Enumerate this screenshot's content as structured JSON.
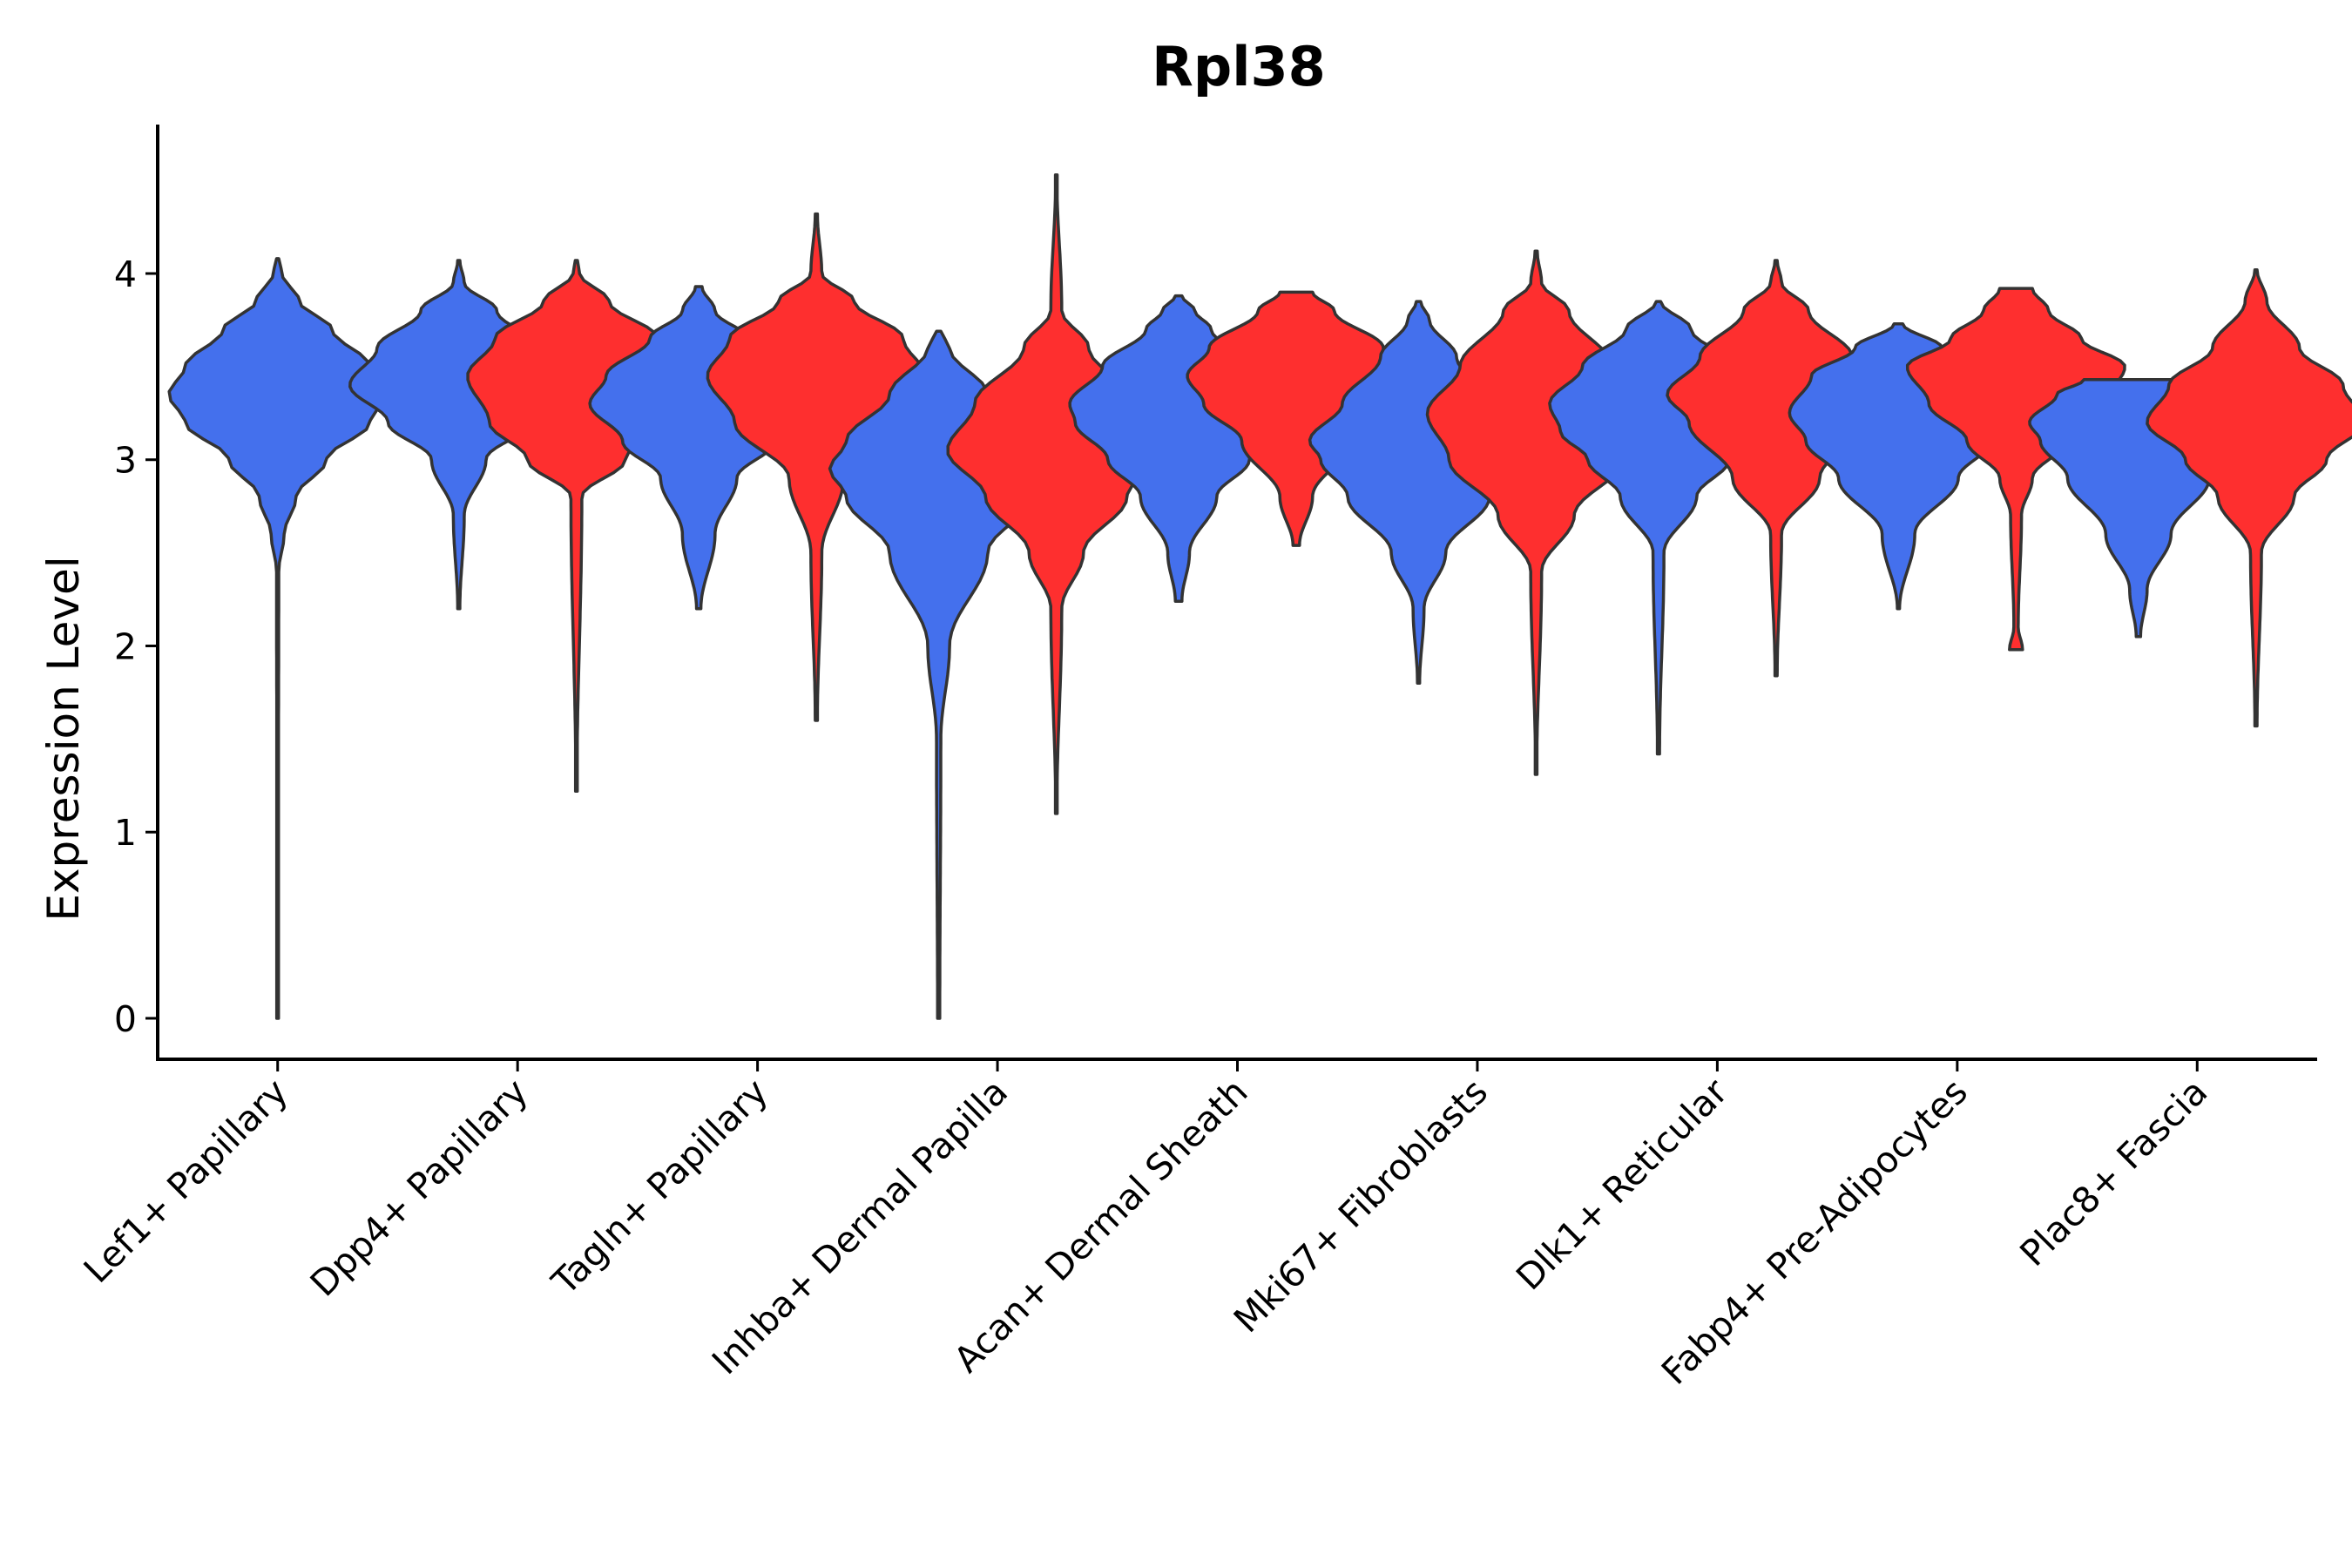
{
  "chart_data": {
    "type": "violin",
    "title": "Rpl38",
    "xlabel": "",
    "ylabel": "Expression Level",
    "ylim": [
      -0.22,
      4.8
    ],
    "yticks": [
      0,
      1,
      2,
      3,
      4
    ],
    "grid": false,
    "legend": "none",
    "categories": [
      "Lef1+ Papillary",
      "Dpp4+ Papillary",
      "Tagln+ Papillary",
      "Inhba+ Dermal Papilla",
      "Acan+ Dermal Sheath",
      "Mki67+ Fibroblasts",
      "Dlk1+ Reticular",
      "Fabp4+ Pre-Adipocytes",
      "Plac8+ Fascia"
    ],
    "series": [
      {
        "name": "group1",
        "color": "#4470ed",
        "violins": [
          {
            "category": "Lef1+ Papillary",
            "min": 0.0,
            "max": 4.08,
            "profile": [
              [
                0,
                0.002
              ],
              [
                2.4,
                0.01
              ],
              [
                2.6,
                0.06
              ],
              [
                2.8,
                0.17
              ],
              [
                3.0,
                0.45
              ],
              [
                3.2,
                0.85
              ],
              [
                3.35,
                1.0
              ],
              [
                3.5,
                0.85
              ],
              [
                3.7,
                0.5
              ],
              [
                3.85,
                0.2
              ],
              [
                4.0,
                0.04
              ],
              [
                4.08,
                0.01
              ]
            ]
          },
          {
            "category": "Dpp4+ Papillary",
            "min": 2.2,
            "max": 4.07,
            "profile": [
              [
                2.2,
                0.01
              ],
              [
                2.7,
                0.05
              ],
              [
                3.0,
                0.25
              ],
              [
                3.2,
                0.65
              ],
              [
                3.4,
                1.0
              ],
              [
                3.6,
                0.75
              ],
              [
                3.8,
                0.35
              ],
              [
                3.95,
                0.05
              ],
              [
                4.07,
                0.01
              ]
            ]
          },
          {
            "category": "Tagln+ Papillary",
            "min": 2.2,
            "max": 3.93,
            "profile": [
              [
                2.2,
                0.02
              ],
              [
                2.6,
                0.15
              ],
              [
                2.9,
                0.35
              ],
              [
                3.1,
                0.7
              ],
              [
                3.3,
                1.0
              ],
              [
                3.45,
                0.85
              ],
              [
                3.65,
                0.45
              ],
              [
                3.8,
                0.15
              ],
              [
                3.93,
                0.03
              ]
            ]
          },
          {
            "category": "Inhba+ Dermal Papilla",
            "min": 0.0,
            "max": 3.69,
            "profile": [
              [
                0,
                0.01
              ],
              [
                1.5,
                0.02
              ],
              [
                2.0,
                0.1
              ],
              [
                2.5,
                0.45
              ],
              [
                2.8,
                0.85
              ],
              [
                2.95,
                1.0
              ],
              [
                3.1,
                0.85
              ],
              [
                3.35,
                0.45
              ],
              [
                3.6,
                0.1
              ],
              [
                3.69,
                0.02
              ]
            ]
          },
          {
            "category": "Acan+ Dermal Sheath",
            "min": 2.24,
            "max": 3.88,
            "profile": [
              [
                2.24,
                0.03
              ],
              [
                2.5,
                0.1
              ],
              [
                2.8,
                0.35
              ],
              [
                3.0,
                0.65
              ],
              [
                3.2,
                0.95
              ],
              [
                3.3,
                1.0
              ],
              [
                3.5,
                0.7
              ],
              [
                3.7,
                0.3
              ],
              [
                3.8,
                0.15
              ],
              [
                3.88,
                0.03
              ]
            ]
          },
          {
            "category": "Mki67+ Fibroblasts",
            "min": 1.8,
            "max": 3.85,
            "profile": [
              [
                1.8,
                0.01
              ],
              [
                2.2,
                0.05
              ],
              [
                2.5,
                0.25
              ],
              [
                2.8,
                0.65
              ],
              [
                3.0,
                0.9
              ],
              [
                3.1,
                1.0
              ],
              [
                3.3,
                0.7
              ],
              [
                3.55,
                0.35
              ],
              [
                3.75,
                0.1
              ],
              [
                3.85,
                0.02
              ]
            ]
          },
          {
            "category": "Dlk1+ Reticular",
            "min": 1.42,
            "max": 3.85,
            "profile": [
              [
                1.42,
                0.01
              ],
              [
                2.5,
                0.05
              ],
              [
                2.8,
                0.35
              ],
              [
                3.0,
                0.65
              ],
              [
                3.15,
                0.9
              ],
              [
                3.3,
                1.0
              ],
              [
                3.5,
                0.7
              ],
              [
                3.7,
                0.3
              ],
              [
                3.85,
                0.02
              ]
            ]
          },
          {
            "category": "Fabp4+ Pre-Adipocytes",
            "min": 2.2,
            "max": 3.73,
            "profile": [
              [
                2.2,
                0.01
              ],
              [
                2.6,
                0.15
              ],
              [
                2.9,
                0.55
              ],
              [
                3.1,
                0.85
              ],
              [
                3.25,
                1.0
              ],
              [
                3.45,
                0.8
              ],
              [
                3.6,
                0.4
              ],
              [
                3.73,
                0.04
              ]
            ]
          },
          {
            "category": "Plac8+ Fascia",
            "min": 2.05,
            "max": 3.43,
            "profile": [
              [
                2.05,
                0.02
              ],
              [
                2.3,
                0.08
              ],
              [
                2.6,
                0.3
              ],
              [
                2.9,
                0.65
              ],
              [
                3.1,
                0.9
              ],
              [
                3.2,
                1.0
              ],
              [
                3.35,
                0.75
              ],
              [
                3.43,
                0.5
              ]
            ]
          }
        ]
      },
      {
        "name": "group2",
        "color": "#fe2f2f",
        "violins": [
          {
            "category": "Dpp4+ Papillary",
            "min": 1.22,
            "max": 4.07,
            "profile": [
              [
                1.22,
                0.005
              ],
              [
                2.8,
                0.05
              ],
              [
                3.0,
                0.45
              ],
              [
                3.2,
                0.8
              ],
              [
                3.45,
                1.0
              ],
              [
                3.65,
                0.75
              ],
              [
                3.85,
                0.3
              ],
              [
                4.0,
                0.03
              ],
              [
                4.07,
                0.01
              ]
            ]
          },
          {
            "category": "Tagln+ Papillary",
            "min": 1.6,
            "max": 4.32,
            "profile": [
              [
                1.6,
                0.01
              ],
              [
                2.5,
                0.05
              ],
              [
                2.9,
                0.25
              ],
              [
                3.2,
                0.75
              ],
              [
                3.45,
                1.0
              ],
              [
                3.65,
                0.8
              ],
              [
                3.85,
                0.35
              ],
              [
                4.0,
                0.05
              ],
              [
                4.32,
                0.01
              ]
            ]
          },
          {
            "category": "Inhba+ Dermal Papilla",
            "min": 1.1,
            "max": 4.53,
            "profile": [
              [
                1.1,
                0.005
              ],
              [
                2.2,
                0.05
              ],
              [
                2.5,
                0.25
              ],
              [
                2.8,
                0.65
              ],
              [
                3.05,
                1.0
              ],
              [
                3.3,
                0.75
              ],
              [
                3.6,
                0.3
              ],
              [
                3.8,
                0.05
              ],
              [
                4.53,
                0.005
              ]
            ]
          },
          {
            "category": "Acan+ Dermal Sheath",
            "min": 2.54,
            "max": 3.9,
            "profile": [
              [
                2.54,
                0.03
              ],
              [
                2.8,
                0.15
              ],
              [
                3.1,
                0.5
              ],
              [
                3.3,
                0.85
              ],
              [
                3.45,
                1.0
              ],
              [
                3.6,
                0.8
              ],
              [
                3.8,
                0.35
              ],
              [
                3.9,
                0.15
              ]
            ]
          },
          {
            "category": "Mki67+ Fibroblasts",
            "min": 1.31,
            "max": 4.12,
            "profile": [
              [
                1.31,
                0.005
              ],
              [
                2.4,
                0.05
              ],
              [
                2.7,
                0.35
              ],
              [
                3.0,
                0.8
              ],
              [
                3.25,
                1.0
              ],
              [
                3.5,
                0.7
              ],
              [
                3.8,
                0.3
              ],
              [
                3.95,
                0.05
              ],
              [
                4.12,
                0.01
              ]
            ]
          },
          {
            "category": "Dlk1+ Reticular",
            "min": 1.84,
            "max": 4.07,
            "profile": [
              [
                1.84,
                0.01
              ],
              [
                2.6,
                0.05
              ],
              [
                2.9,
                0.4
              ],
              [
                3.2,
                0.8
              ],
              [
                3.35,
                1.0
              ],
              [
                3.55,
                0.7
              ],
              [
                3.8,
                0.3
              ],
              [
                3.95,
                0.05
              ],
              [
                4.07,
                0.01
              ]
            ]
          },
          {
            "category": "Fabp4+ Pre-Adipocytes",
            "min": 1.98,
            "max": 3.92,
            "profile": [
              [
                1.98,
                0.06
              ],
              [
                2.1,
                0.02
              ],
              [
                2.7,
                0.05
              ],
              [
                2.9,
                0.15
              ],
              [
                3.1,
                0.45
              ],
              [
                3.3,
                0.8
              ],
              [
                3.5,
                1.0
              ],
              [
                3.65,
                0.6
              ],
              [
                3.8,
                0.3
              ],
              [
                3.92,
                0.15
              ]
            ]
          },
          {
            "category": "Plac8+ Fascia",
            "min": 1.57,
            "max": 4.02,
            "profile": [
              [
                1.57,
                0.01
              ],
              [
                2.5,
                0.05
              ],
              [
                2.8,
                0.35
              ],
              [
                3.0,
                0.65
              ],
              [
                3.2,
                1.0
              ],
              [
                3.4,
                0.8
              ],
              [
                3.6,
                0.4
              ],
              [
                3.85,
                0.1
              ],
              [
                4.02,
                0.01
              ]
            ]
          }
        ]
      }
    ]
  }
}
